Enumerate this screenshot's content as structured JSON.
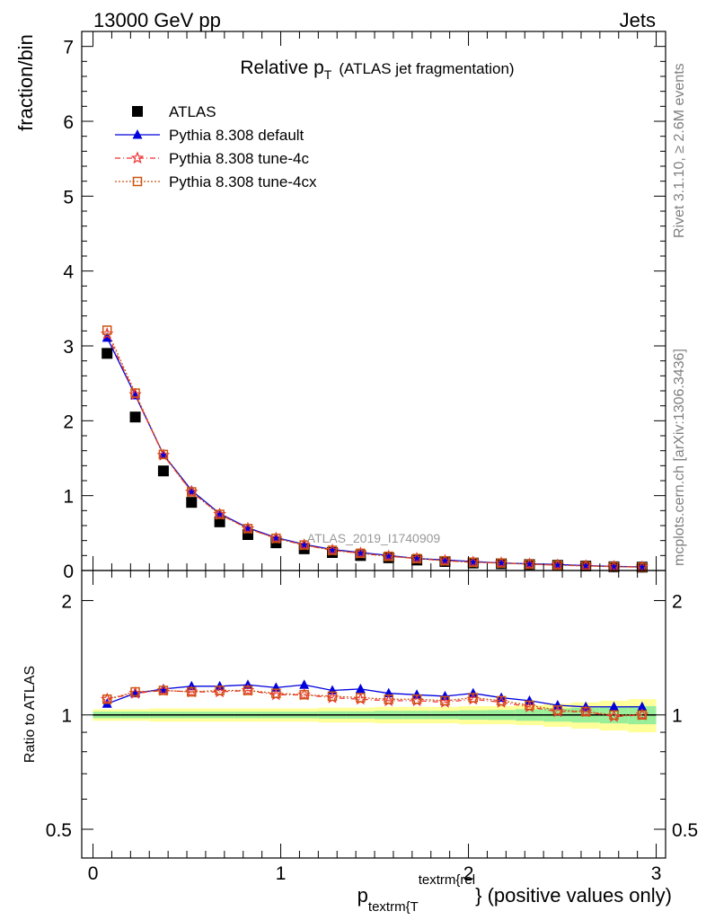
{
  "header": {
    "energy": "13000 GeV pp",
    "process": "Jets"
  },
  "side_labels": {
    "rivet": "Rivet 3.1.10, ≥ 2.6M events",
    "mcplots": "mcplots.cern.ch [arXiv:1306.3436]"
  },
  "chart_data": [
    {
      "type": "scatter",
      "title_main": "Relative p",
      "title_sub": "T",
      "title_rest": "(ATLAS jet fragmentation)",
      "ylabel": "fraction/bin",
      "ylim": [
        0,
        7.2
      ],
      "yticks": [
        0,
        1,
        2,
        3,
        4,
        5,
        6,
        7
      ],
      "xlim": [
        -0.06,
        3.05
      ],
      "watermark": "ATLAS_2019_I1740909",
      "legend_position": "top-left",
      "x": [
        0.075,
        0.225,
        0.375,
        0.525,
        0.675,
        0.825,
        0.975,
        1.125,
        1.275,
        1.425,
        1.575,
        1.725,
        1.875,
        2.025,
        2.175,
        2.325,
        2.475,
        2.625,
        2.775,
        2.925
      ],
      "series": [
        {
          "name": "ATLAS",
          "color": "#000000",
          "marker": "square",
          "values": [
            2.9,
            2.05,
            1.33,
            0.91,
            0.65,
            0.48,
            0.37,
            0.29,
            0.24,
            0.2,
            0.17,
            0.14,
            0.12,
            0.1,
            0.09,
            0.08,
            0.07,
            0.06,
            0.05,
            0.045
          ]
        },
        {
          "name": "Pythia 8.308 default",
          "color": "#0000dd",
          "marker": "triangle",
          "values": [
            3.11,
            2.34,
            1.55,
            1.07,
            0.76,
            0.57,
            0.44,
            0.35,
            0.28,
            0.24,
            0.2,
            0.16,
            0.14,
            0.12,
            0.1,
            0.09,
            0.08,
            0.065,
            0.055,
            0.048
          ]
        },
        {
          "name": "Pythia 8.308 tune-4c",
          "color": "#ee3333",
          "marker": "star",
          "values": [
            3.16,
            2.35,
            1.54,
            1.05,
            0.75,
            0.56,
            0.43,
            0.34,
            0.27,
            0.23,
            0.19,
            0.16,
            0.13,
            0.11,
            0.1,
            0.085,
            0.072,
            0.062,
            0.052,
            0.046
          ]
        },
        {
          "name": "Pythia 8.308 tune-4cx",
          "color": "#cc5511",
          "marker": "open-square",
          "values": [
            3.21,
            2.37,
            1.55,
            1.05,
            0.75,
            0.56,
            0.43,
            0.34,
            0.27,
            0.23,
            0.19,
            0.16,
            0.13,
            0.11,
            0.1,
            0.085,
            0.071,
            0.061,
            0.051,
            0.045
          ]
        }
      ]
    },
    {
      "type": "scatter",
      "ylabel": "Ratio to ATLAS",
      "yscale": "log",
      "ylim": [
        0.42,
        2.4
      ],
      "yticks": [
        0.5,
        1,
        2
      ],
      "ytick_labels": [
        "0.5",
        "1",
        "2"
      ],
      "xlim": [
        -0.06,
        3.05
      ],
      "xticks": [
        0,
        1,
        2,
        3
      ],
      "xtick_labels": [
        "0",
        "1",
        "2",
        "3"
      ],
      "xlabel_main": "p",
      "xlabel_sub": "textrm{T",
      "xlabel_sup": "textrm{rel",
      "xlabel_rest": "} (positive values only)",
      "x": [
        0.075,
        0.225,
        0.375,
        0.525,
        0.675,
        0.825,
        0.975,
        1.125,
        1.275,
        1.425,
        1.575,
        1.725,
        1.875,
        2.025,
        2.175,
        2.325,
        2.475,
        2.625,
        2.775,
        2.925
      ],
      "bands": {
        "outer_color": "#ffff99",
        "inner_color": "#99ee99",
        "outer": [
          0.035,
          0.035,
          0.04,
          0.04,
          0.04,
          0.04,
          0.04,
          0.04,
          0.045,
          0.045,
          0.05,
          0.05,
          0.05,
          0.055,
          0.055,
          0.06,
          0.07,
          0.08,
          0.09,
          0.1
        ],
        "inner": [
          0.02,
          0.02,
          0.02,
          0.02,
          0.02,
          0.02,
          0.02,
          0.02,
          0.022,
          0.022,
          0.025,
          0.025,
          0.025,
          0.028,
          0.03,
          0.035,
          0.04,
          0.045,
          0.05,
          0.055
        ]
      },
      "series": [
        {
          "name": "Pythia 8.308 default",
          "color": "#0000dd",
          "marker": "triangle",
          "values": [
            1.07,
            1.14,
            1.17,
            1.19,
            1.19,
            1.2,
            1.18,
            1.2,
            1.16,
            1.17,
            1.14,
            1.13,
            1.12,
            1.14,
            1.11,
            1.09,
            1.06,
            1.05,
            1.05,
            1.05
          ]
        },
        {
          "name": "Pythia 8.308 tune-4c",
          "color": "#ee3333",
          "marker": "star",
          "values": [
            1.1,
            1.14,
            1.16,
            1.15,
            1.15,
            1.16,
            1.13,
            1.13,
            1.11,
            1.1,
            1.09,
            1.09,
            1.08,
            1.1,
            1.08,
            1.05,
            1.02,
            1.02,
            0.99,
            1.0
          ]
        },
        {
          "name": "Pythia 8.308 tune-4cx",
          "color": "#cc5511",
          "marker": "open-square",
          "values": [
            1.1,
            1.15,
            1.16,
            1.15,
            1.16,
            1.16,
            1.14,
            1.13,
            1.12,
            1.11,
            1.1,
            1.1,
            1.09,
            1.11,
            1.09,
            1.06,
            1.03,
            1.02,
            1.0,
            1.0
          ]
        }
      ]
    }
  ]
}
